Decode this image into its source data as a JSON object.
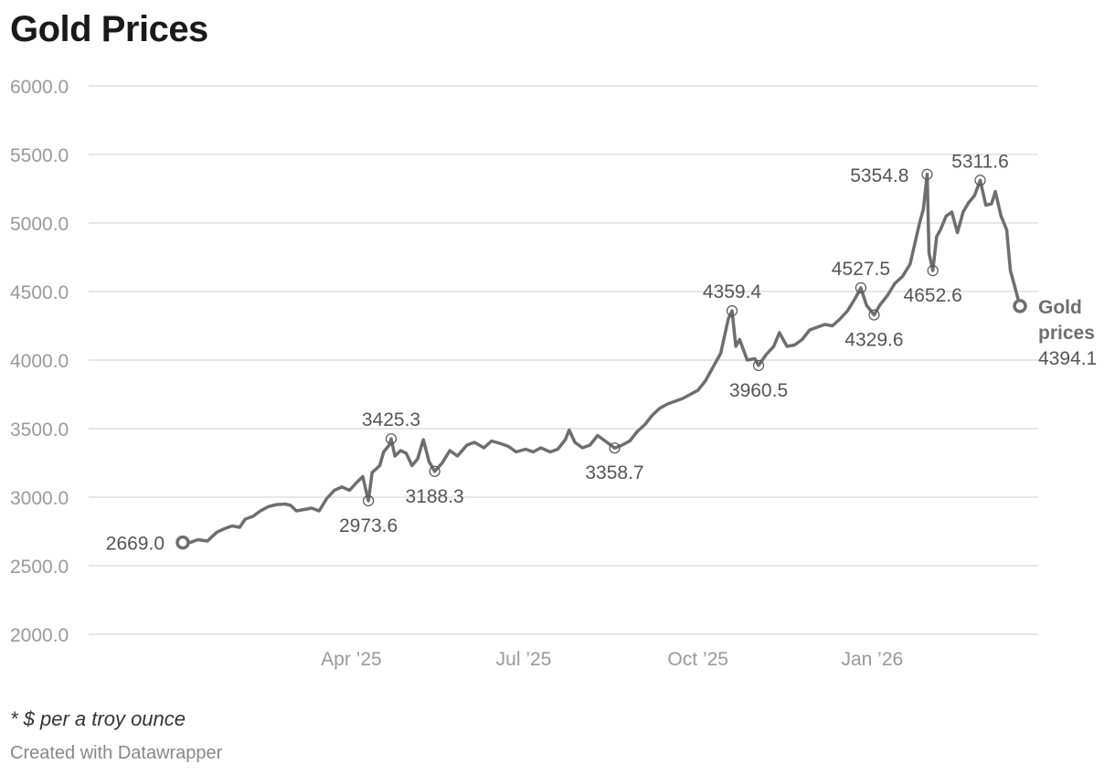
{
  "header": {
    "title": "Gold Prices"
  },
  "footer": {
    "note": "* $ per a troy ounce",
    "credit": "Created with Datawrapper"
  },
  "colors": {
    "line": "#6e6e6e",
    "grid": "#dddddd",
    "axis_text": "#9a9a9a",
    "annotation_text": "#555555"
  },
  "chart_data": {
    "type": "line",
    "title": "Gold Prices",
    "xlabel": "",
    "ylabel": "",
    "ylim": [
      2000,
      6000
    ],
    "y_ticks": [
      2000,
      2500,
      3000,
      3500,
      4000,
      4500,
      5000,
      5500,
      6000
    ],
    "y_tick_labels": [
      "2000.0",
      "2500.0",
      "3000.0",
      "3500.0",
      "4000.0",
      "4500.0",
      "5000.0",
      "5500.0",
      "6000.0"
    ],
    "x_range": [
      "2025-01-02",
      "2026-03-20"
    ],
    "x_ticks": [
      "2025-04-01",
      "2025-07-01",
      "2025-10-01",
      "2026-01-01"
    ],
    "x_tick_labels": [
      "Apr ’25",
      "Jul ’25",
      "Oct ’25",
      "Jan ’26"
    ],
    "grid": true,
    "series": [
      {
        "name": "Gold prices",
        "end_label": "Gold prices",
        "end_value_label": "4394.1",
        "points": [
          [
            "2025-01-02",
            2669.0
          ],
          [
            "2025-01-06",
            2670
          ],
          [
            "2025-01-10",
            2690
          ],
          [
            "2025-01-15",
            2680
          ],
          [
            "2025-01-20",
            2745
          ],
          [
            "2025-01-24",
            2770
          ],
          [
            "2025-01-28",
            2790
          ],
          [
            "2025-02-01",
            2780
          ],
          [
            "2025-02-04",
            2840
          ],
          [
            "2025-02-08",
            2860
          ],
          [
            "2025-02-12",
            2900
          ],
          [
            "2025-02-16",
            2930
          ],
          [
            "2025-02-20",
            2945
          ],
          [
            "2025-02-25",
            2950
          ],
          [
            "2025-02-28",
            2940
          ],
          [
            "2025-03-03",
            2900
          ],
          [
            "2025-03-07",
            2910
          ],
          [
            "2025-03-11",
            2920
          ],
          [
            "2025-03-15",
            2900
          ],
          [
            "2025-03-19",
            2990
          ],
          [
            "2025-03-23",
            3050
          ],
          [
            "2025-03-27",
            3075
          ],
          [
            "2025-03-31",
            3050
          ],
          [
            "2025-04-04",
            3110
          ],
          [
            "2025-04-07",
            3150
          ],
          [
            "2025-04-10",
            2973.6
          ],
          [
            "2025-04-12",
            3180
          ],
          [
            "2025-04-16",
            3230
          ],
          [
            "2025-04-18",
            3330
          ],
          [
            "2025-04-21",
            3380
          ],
          [
            "2025-04-22",
            3425.3
          ],
          [
            "2025-04-24",
            3300
          ],
          [
            "2025-04-27",
            3340
          ],
          [
            "2025-04-30",
            3320
          ],
          [
            "2025-05-03",
            3230
          ],
          [
            "2025-05-06",
            3280
          ],
          [
            "2025-05-09",
            3420
          ],
          [
            "2025-05-12",
            3260
          ],
          [
            "2025-05-15",
            3188.3
          ],
          [
            "2025-05-19",
            3250
          ],
          [
            "2025-05-23",
            3340
          ],
          [
            "2025-05-27",
            3300
          ],
          [
            "2025-06-01",
            3380
          ],
          [
            "2025-06-05",
            3400
          ],
          [
            "2025-06-10",
            3360
          ],
          [
            "2025-06-14",
            3410
          ],
          [
            "2025-06-19",
            3390
          ],
          [
            "2025-06-23",
            3370
          ],
          [
            "2025-06-27",
            3330
          ],
          [
            "2025-07-02",
            3350
          ],
          [
            "2025-07-06",
            3330
          ],
          [
            "2025-07-10",
            3360
          ],
          [
            "2025-07-15",
            3330
          ],
          [
            "2025-07-19",
            3350
          ],
          [
            "2025-07-23",
            3420
          ],
          [
            "2025-07-25",
            3490
          ],
          [
            "2025-07-28",
            3400
          ],
          [
            "2025-08-01",
            3360
          ],
          [
            "2025-08-05",
            3380
          ],
          [
            "2025-08-09",
            3450
          ],
          [
            "2025-08-14",
            3400
          ],
          [
            "2025-08-18",
            3358.7
          ],
          [
            "2025-08-22",
            3380
          ],
          [
            "2025-08-26",
            3410
          ],
          [
            "2025-08-30",
            3480
          ],
          [
            "2025-09-03",
            3530
          ],
          [
            "2025-09-07",
            3600
          ],
          [
            "2025-09-11",
            3650
          ],
          [
            "2025-09-15",
            3680
          ],
          [
            "2025-09-19",
            3700
          ],
          [
            "2025-09-23",
            3720
          ],
          [
            "2025-09-27",
            3750
          ],
          [
            "2025-10-01",
            3780
          ],
          [
            "2025-10-05",
            3850
          ],
          [
            "2025-10-09",
            3950
          ],
          [
            "2025-10-13",
            4050
          ],
          [
            "2025-10-17",
            4300
          ],
          [
            "2025-10-19",
            4359.4
          ],
          [
            "2025-10-21",
            4100
          ],
          [
            "2025-10-23",
            4150
          ],
          [
            "2025-10-27",
            4000
          ],
          [
            "2025-10-31",
            4010
          ],
          [
            "2025-11-02",
            3960.5
          ],
          [
            "2025-11-06",
            4040
          ],
          [
            "2025-11-10",
            4100
          ],
          [
            "2025-11-13",
            4200
          ],
          [
            "2025-11-17",
            4100
          ],
          [
            "2025-11-21",
            4110
          ],
          [
            "2025-11-25",
            4150
          ],
          [
            "2025-11-29",
            4220
          ],
          [
            "2025-12-03",
            4240
          ],
          [
            "2025-12-07",
            4260
          ],
          [
            "2025-12-11",
            4250
          ],
          [
            "2025-12-15",
            4300
          ],
          [
            "2025-12-19",
            4360
          ],
          [
            "2025-12-23",
            4450
          ],
          [
            "2025-12-26",
            4527.5
          ],
          [
            "2025-12-29",
            4400
          ],
          [
            "2026-01-02",
            4329.6
          ],
          [
            "2026-01-05",
            4400
          ],
          [
            "2026-01-09",
            4470
          ],
          [
            "2026-01-13",
            4560
          ],
          [
            "2026-01-17",
            4610
          ],
          [
            "2026-01-21",
            4700
          ],
          [
            "2026-01-24",
            4880
          ],
          [
            "2026-01-26",
            5000
          ],
          [
            "2026-01-28",
            5100
          ],
          [
            "2026-01-30",
            5354.8
          ],
          [
            "2026-01-31",
            4780
          ],
          [
            "2026-02-02",
            4652.6
          ],
          [
            "2026-02-04",
            4900
          ],
          [
            "2026-02-06",
            4950
          ],
          [
            "2026-02-09",
            5050
          ],
          [
            "2026-02-12",
            5080
          ],
          [
            "2026-02-15",
            4930
          ],
          [
            "2026-02-18",
            5080
          ],
          [
            "2026-02-21",
            5150
          ],
          [
            "2026-02-24",
            5200
          ],
          [
            "2026-02-27",
            5311.6
          ],
          [
            "2026-03-02",
            5130
          ],
          [
            "2026-03-05",
            5140
          ],
          [
            "2026-03-07",
            5230
          ],
          [
            "2026-03-10",
            5050
          ],
          [
            "2026-03-13",
            4950
          ],
          [
            "2026-03-15",
            4650
          ],
          [
            "2026-03-17",
            4550
          ],
          [
            "2026-03-20",
            4394.1
          ]
        ]
      }
    ],
    "annotations": [
      {
        "date": "2025-01-02",
        "value": 2669.0,
        "label": "2669.0",
        "pos": "left"
      },
      {
        "date": "2025-04-10",
        "value": 2973.6,
        "label": "2973.6",
        "pos": "below"
      },
      {
        "date": "2025-04-22",
        "value": 3425.3,
        "label": "3425.3",
        "pos": "above"
      },
      {
        "date": "2025-05-15",
        "value": 3188.3,
        "label": "3188.3",
        "pos": "below"
      },
      {
        "date": "2025-08-18",
        "value": 3358.7,
        "label": "3358.7",
        "pos": "below"
      },
      {
        "date": "2025-10-19",
        "value": 4359.4,
        "label": "4359.4",
        "pos": "above"
      },
      {
        "date": "2025-11-02",
        "value": 3960.5,
        "label": "3960.5",
        "pos": "below"
      },
      {
        "date": "2025-12-26",
        "value": 4527.5,
        "label": "4527.5",
        "pos": "above"
      },
      {
        "date": "2026-01-02",
        "value": 4329.6,
        "label": "4329.6",
        "pos": "below"
      },
      {
        "date": "2026-01-30",
        "value": 5354.8,
        "label": "5354.8",
        "pos": "left"
      },
      {
        "date": "2026-02-02",
        "value": 4652.6,
        "label": "4652.6",
        "pos": "below"
      },
      {
        "date": "2026-02-27",
        "value": 5311.6,
        "label": "5311.6",
        "pos": "above"
      }
    ]
  }
}
